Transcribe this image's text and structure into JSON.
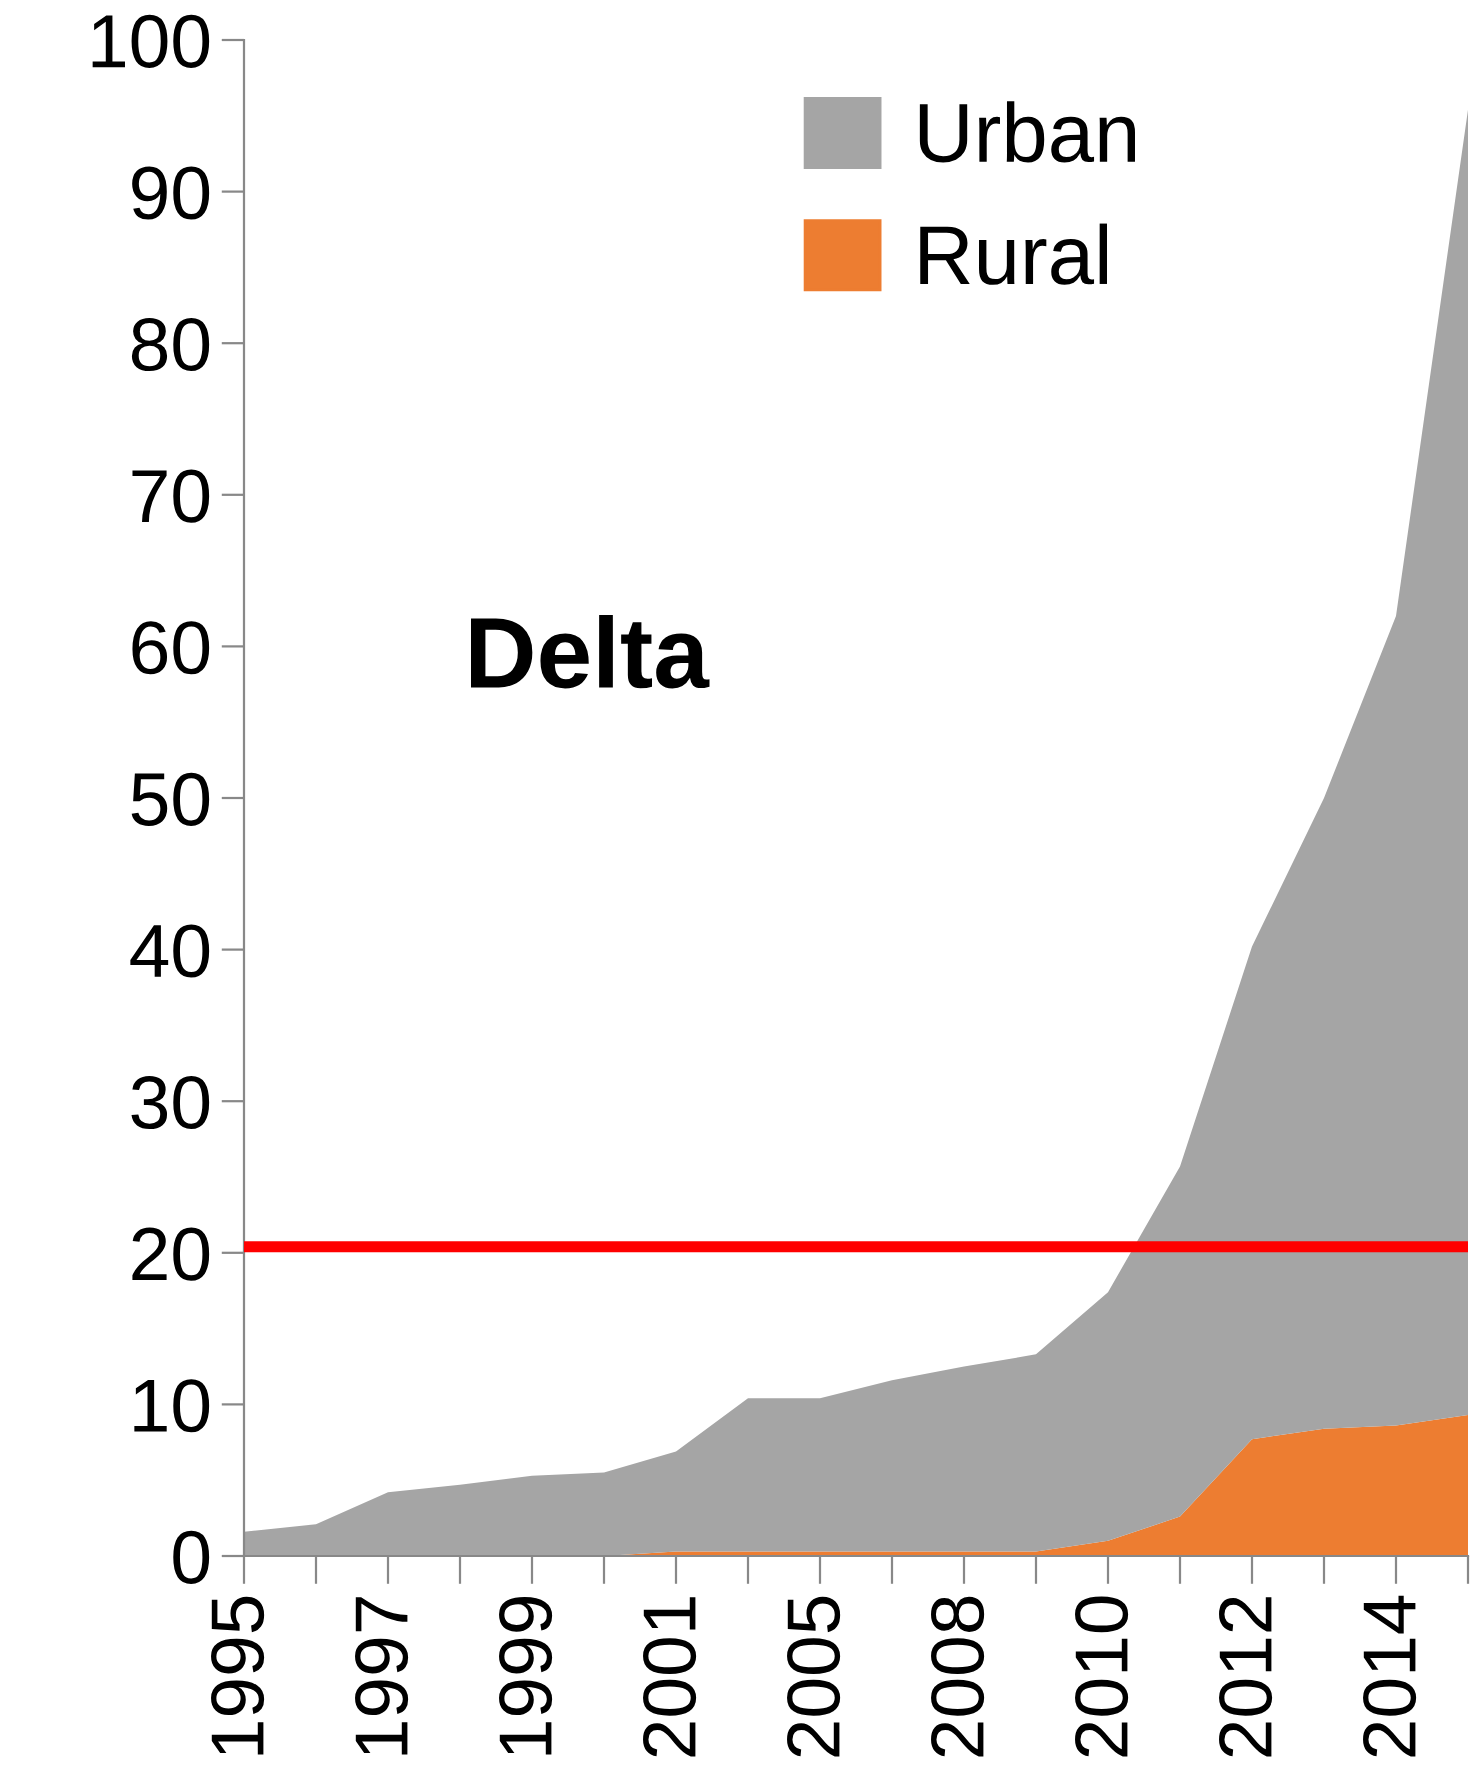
{
  "chart_data": {
    "type": "area",
    "stacked": true,
    "categories": [
      "1995",
      null,
      "1997",
      null,
      "1999",
      null,
      "2001",
      null,
      "2005",
      null,
      "2008",
      null,
      "2010",
      null,
      "2012",
      null,
      "2014",
      null
    ],
    "series": [
      {
        "name": "Rural",
        "color": "#ed7d31",
        "values": [
          0,
          0,
          0,
          0,
          0,
          0,
          0.3,
          0.3,
          0.3,
          0.3,
          0.3,
          0.3,
          1.0,
          2.6,
          7.7,
          8.4,
          8.6,
          9.3
        ]
      },
      {
        "name": "Urban",
        "color": "#a5a5a5",
        "values": [
          1.6,
          2.1,
          4.2,
          4.7,
          5.3,
          5.5,
          6.6,
          10.1,
          10.1,
          11.3,
          12.2,
          13.0,
          16.4,
          23.1,
          32.5,
          41.6,
          53.4,
          86.1
        ]
      }
    ],
    "ylim": [
      0,
      100
    ],
    "yticks": [
      0,
      10,
      20,
      30,
      40,
      50,
      60,
      70,
      80,
      90,
      100
    ],
    "ref_lines": [
      {
        "axis": "y",
        "value": 20.4,
        "color": "#ff0000"
      }
    ],
    "annotations": [
      "Delta"
    ],
    "legend": "top right",
    "grid": false
  }
}
